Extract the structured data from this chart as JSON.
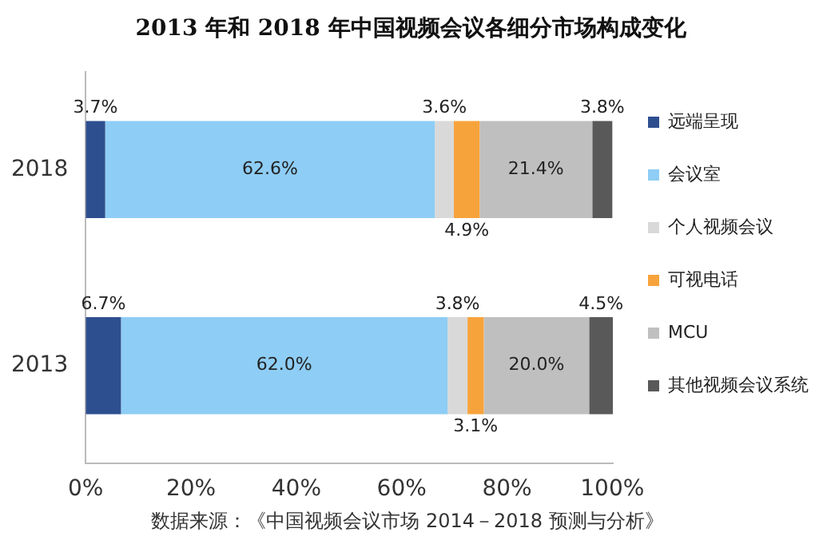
{
  "chart_data": {
    "type": "bar",
    "orientation": "horizontal",
    "stacked": true,
    "title": "2013 年和 2018 年中国视频会议各细分市场构成变化",
    "categories": [
      "2018",
      "2013"
    ],
    "series": [
      {
        "name": "远端呈现",
        "color": "#2e4f8f",
        "values": [
          3.7,
          6.7
        ],
        "value_labels": [
          "3.7%",
          "6.7%"
        ]
      },
      {
        "name": "会议室",
        "color": "#8ecdf5",
        "values": [
          62.6,
          62.0
        ],
        "value_labels": [
          "62.6%",
          "62.0%"
        ]
      },
      {
        "name": "个人视频会议",
        "color": "#d9d9d9",
        "values": [
          3.6,
          3.8
        ],
        "value_labels": [
          "3.6%",
          "3.8%"
        ]
      },
      {
        "name": "可视电话",
        "color": "#f7a33c",
        "values": [
          4.9,
          3.1
        ],
        "value_labels": [
          "4.9%",
          "3.1%"
        ]
      },
      {
        "name": "MCU",
        "color": "#bfbfbf",
        "values": [
          21.4,
          20.0
        ],
        "value_labels": [
          "21.4%",
          "20.0%"
        ]
      },
      {
        "name": "其他视频会议系统",
        "color": "#595959",
        "values": [
          3.8,
          4.5
        ],
        "value_labels": [
          "3.8%",
          "4.5%"
        ]
      }
    ],
    "xlim": [
      0,
      100.1
    ],
    "xticks": [
      {
        "value": 0,
        "label": "0%"
      },
      {
        "value": 20,
        "label": "20%"
      },
      {
        "value": 40,
        "label": "40%"
      },
      {
        "value": 60,
        "label": "60%"
      },
      {
        "value": 80,
        "label": "80%"
      },
      {
        "value": 100,
        "label": "100%"
      }
    ],
    "grid": false,
    "legend": "right",
    "annotations": [
      "数据来源：《中国视频会议市场 2014－2018 预测与分析》"
    ]
  }
}
